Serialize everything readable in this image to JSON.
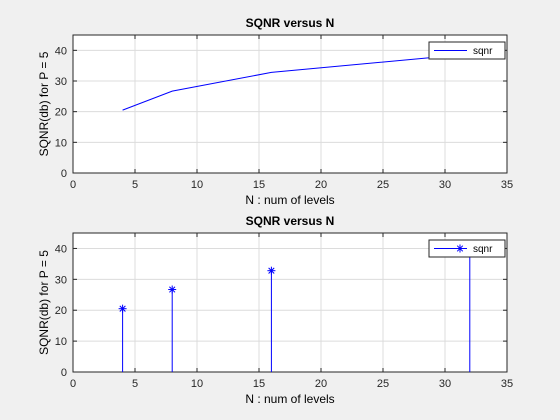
{
  "chart_data": [
    {
      "type": "line",
      "title": "SQNR versus N",
      "xlabel": "N : num of levels",
      "ylabel": "SQNR(db) for P = 5",
      "xlim": [
        0,
        35
      ],
      "ylim": [
        0,
        45
      ],
      "xticks": [
        0,
        5,
        10,
        15,
        20,
        25,
        30,
        35
      ],
      "yticks": [
        0,
        10,
        20,
        30,
        40
      ],
      "grid": true,
      "legend_position": "top-right",
      "series": [
        {
          "name": "sqnr",
          "x": [
            4,
            8,
            16,
            32
          ],
          "y": [
            20.5,
            26.7,
            32.8,
            38.8
          ],
          "color": "#0000ff",
          "marker": "none"
        }
      ]
    },
    {
      "type": "stem",
      "title": "SQNR versus N",
      "xlabel": "N : num of levels",
      "ylabel": "SQNR(db) for P = 5",
      "xlim": [
        0,
        35
      ],
      "ylim": [
        0,
        45
      ],
      "xticks": [
        0,
        5,
        10,
        15,
        20,
        25,
        30,
        35
      ],
      "yticks": [
        0,
        10,
        20,
        30,
        40
      ],
      "grid": true,
      "legend_position": "top-right",
      "series": [
        {
          "name": "sqnr",
          "x": [
            4,
            8,
            16,
            32
          ],
          "y": [
            20.5,
            26.7,
            32.8,
            38.8
          ],
          "color": "#0000ff",
          "marker": "asterisk"
        }
      ]
    }
  ]
}
